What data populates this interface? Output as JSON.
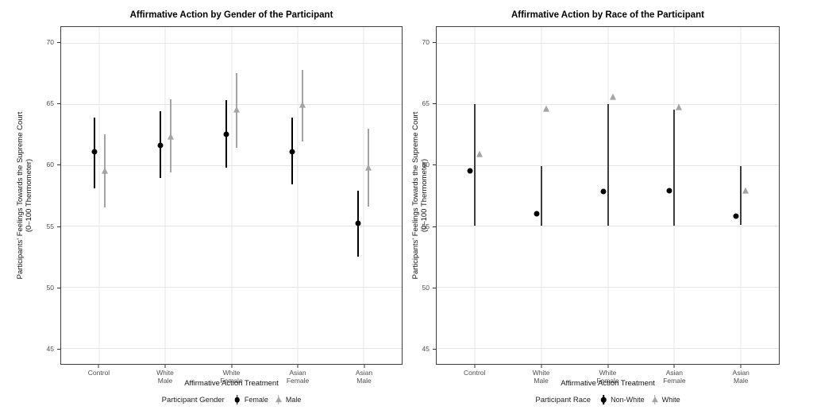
{
  "page": {
    "background": "#ffffff"
  },
  "colors": {
    "point_dark": "#000000",
    "point_gray": "#a3a3a3",
    "center_bar": "#3d3d3d",
    "grid": "#e4e4e4",
    "panel_border": "#3f3f3f",
    "tick_text": "#4d4d4d"
  },
  "chart_data": [
    {
      "type": "scatter",
      "title": "Affirmative Action by Gender of the Participant",
      "xlabel": "Affirmative Action Treatment",
      "ylabel_line1": "Participants' Feelings Towards the Supreme Court",
      "ylabel_line2": "(0–100 Thermometer)",
      "ylim": [
        43.7,
        71.3
      ],
      "yticks": [
        "45",
        "50",
        "55",
        "60",
        "65",
        "70"
      ],
      "ytick_values": [
        45,
        50,
        55,
        60,
        65,
        70
      ],
      "grid": true,
      "categories": [
        [
          "Control"
        ],
        [
          "White",
          "Male"
        ],
        [
          "White",
          "Female"
        ],
        [
          "Asian",
          "Female"
        ],
        [
          "Asian",
          "Male"
        ]
      ],
      "legend": {
        "position": "bottom",
        "title": "Participant Gender",
        "items": [
          {
            "label": "Female",
            "marker": "circle",
            "color": "#000000"
          },
          {
            "label": "Male",
            "marker": "triangle",
            "color": "#a3a3a3"
          }
        ]
      },
      "series": [
        {
          "name": "Female",
          "marker": "circle",
          "color": "#000000",
          "dodge": -6.5,
          "values": [
            61.1,
            61.6,
            62.5,
            61.1,
            55.2
          ],
          "ci_low": [
            58.1,
            58.9,
            59.8,
            58.4,
            52.5
          ],
          "ci_high": [
            63.9,
            64.4,
            65.3,
            63.9,
            57.9
          ]
        },
        {
          "name": "Male",
          "marker": "triangle",
          "color": "#a4a4a4",
          "dodge": 6.5,
          "values": [
            59.5,
            62.3,
            64.5,
            64.9,
            59.8
          ],
          "ci_low": [
            56.5,
            59.4,
            61.4,
            61.9,
            56.6
          ],
          "ci_high": [
            62.5,
            65.4,
            67.5,
            67.8,
            63.0
          ]
        }
      ]
    },
    {
      "type": "scatter",
      "title": "Affirmative Action by Race of the Participant",
      "xlabel": "Affirmative Action Treatment",
      "ylabel_line1": "Participants' Feelings Towards the Supreme Court",
      "ylabel_line2": "(0–100 Thermometer)",
      "ylim": [
        43.7,
        71.3
      ],
      "yticks": [
        "45",
        "50",
        "55",
        "60",
        "65",
        "70"
      ],
      "ytick_values": [
        45,
        50,
        55,
        60,
        65,
        70
      ],
      "grid": true,
      "categories": [
        [
          "Control"
        ],
        [
          "White",
          "Male"
        ],
        [
          "White",
          "Female"
        ],
        [
          "Asian",
          "Female"
        ],
        [
          "Asian",
          "Male"
        ]
      ],
      "legend": {
        "position": "bottom",
        "title": "Participant Race",
        "items": [
          {
            "label": "Non-White",
            "marker": "circle",
            "color": "#000000"
          },
          {
            "label": "White",
            "marker": "triangle",
            "color": "#a3a3a3"
          }
        ]
      },
      "series": [
        {
          "name": "Non-White",
          "marker": "circle",
          "color": "#000000",
          "dodge": -6,
          "values": [
            59.5,
            56.0,
            57.8,
            57.9,
            55.8
          ]
        },
        {
          "name": "White",
          "marker": "triangle",
          "color": "#a4a4a4",
          "dodge": 6,
          "values": [
            60.9,
            64.6,
            65.6,
            64.7,
            57.9
          ]
        }
      ],
      "center_bars": {
        "low": [
          55.0,
          55.0,
          55.0,
          55.0,
          55.1
        ],
        "high": [
          65.0,
          59.9,
          65.0,
          64.5,
          59.9
        ]
      }
    }
  ]
}
